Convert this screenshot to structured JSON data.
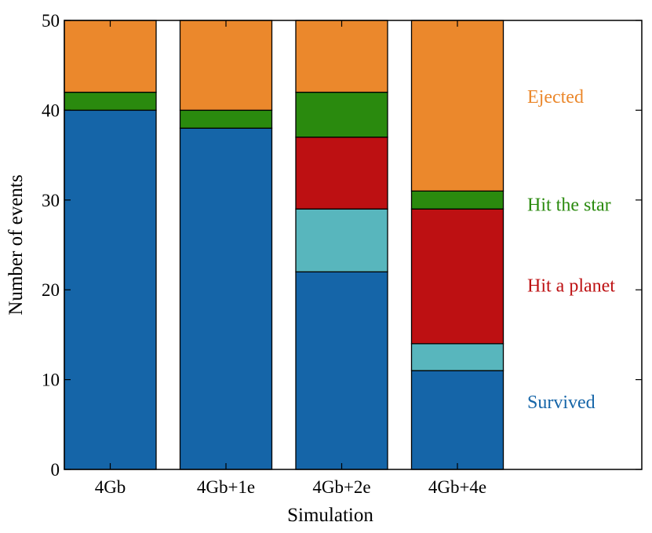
{
  "chart_data": {
    "type": "bar",
    "stacked": true,
    "xlabel": "Simulation",
    "ylabel": "Number of events",
    "ylim": [
      0,
      50
    ],
    "yticks": [
      0,
      10,
      20,
      30,
      40,
      50
    ],
    "categories": [
      "4Gb",
      "4Gb+1e",
      "4Gb+2e",
      "4Gb+4e"
    ],
    "series": [
      {
        "key": "survived",
        "color": "#1565a8",
        "values": [
          40,
          38,
          22,
          11
        ]
      },
      {
        "key": "cyan",
        "color": "#58b6bd",
        "values": [
          0,
          0,
          7,
          3
        ]
      },
      {
        "key": "planet",
        "color": "#bd1012",
        "values": [
          0,
          0,
          8,
          15
        ]
      },
      {
        "key": "star",
        "color": "#2a8a0e",
        "values": [
          2,
          2,
          5,
          2
        ]
      },
      {
        "key": "ejected",
        "color": "#eb882c",
        "values": [
          8,
          10,
          8,
          19
        ]
      }
    ],
    "annotations": [
      {
        "text": "Ejected",
        "color": "#eb882c",
        "y": 41.5
      },
      {
        "text": "Hit the star",
        "color": "#2a8a0e",
        "y": 29.5
      },
      {
        "text": "Hit a planet",
        "color": "#bd1012",
        "y": 20.5
      },
      {
        "text": "Survived",
        "color": "#1565a8",
        "y": 7.5
      }
    ],
    "grid": false
  }
}
